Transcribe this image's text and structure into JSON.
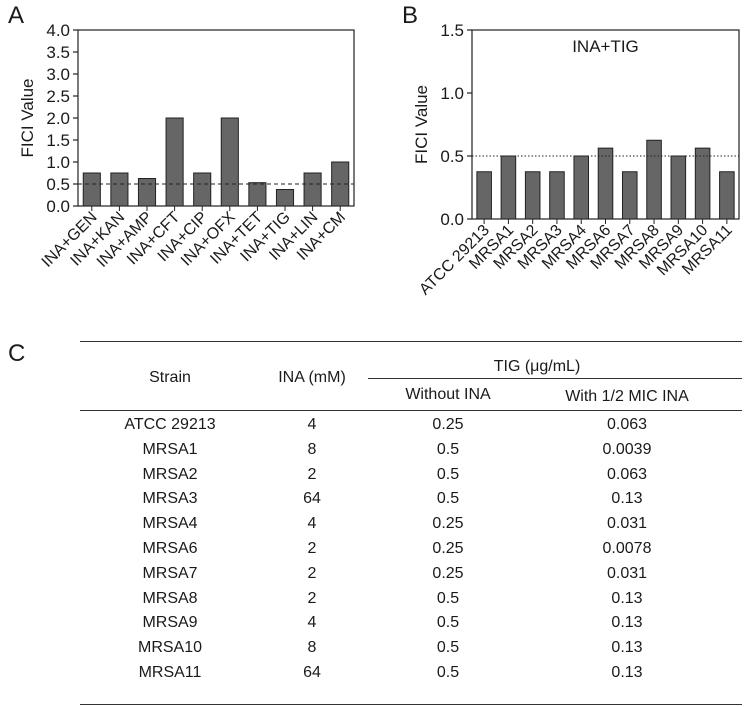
{
  "panels": {
    "a": "A",
    "b": "B",
    "c": "C"
  },
  "chart_data": [
    {
      "type": "bar",
      "panel": "A",
      "title": "",
      "xlabel": "",
      "ylabel": "FICI Value",
      "ylim": [
        0,
        4.0
      ],
      "yticks": [
        "0.0",
        "0.5",
        "1.0",
        "1.5",
        "2.0",
        "2.5",
        "3.0",
        "3.5",
        "4.0"
      ],
      "reference_line": 0.5,
      "categories": [
        "INA+GEN",
        "INA+KAN",
        "INA+AMP",
        "INA+CFT",
        "INA+CIP",
        "INA+OFX",
        "INA+TET",
        "INA+TIG",
        "INA+LIN",
        "INA+CM"
      ],
      "values": [
        0.75,
        0.75,
        0.625,
        2.0,
        0.75,
        2.0,
        0.53,
        0.375,
        0.75,
        1.0
      ]
    },
    {
      "type": "bar",
      "panel": "B",
      "title": "INA+TIG",
      "xlabel": "",
      "ylabel": "FICI Value",
      "ylim": [
        0,
        1.5
      ],
      "yticks": [
        "0.0",
        "0.5",
        "1.0",
        "1.5"
      ],
      "reference_line": 0.5,
      "categories": [
        "ATCC 29213",
        "MRSA1",
        "MRSA2",
        "MRSA3",
        "MRSA4",
        "MRSA6",
        "MRSA7",
        "MRSA8",
        "MRSA9",
        "MRSA10",
        "MRSA11"
      ],
      "values": [
        0.375,
        0.5,
        0.375,
        0.375,
        0.5,
        0.5625,
        0.375,
        0.625,
        0.5,
        0.5625,
        0.375
      ]
    }
  ],
  "table": {
    "headers": {
      "strain": "Strain",
      "ina": "INA (mM)",
      "tig": "TIG (μg/mL)",
      "without": "Without INA",
      "with": "With 1/2 MIC INA"
    },
    "rows": [
      [
        "ATCC 29213",
        "4",
        "0.25",
        "0.063"
      ],
      [
        "MRSA1",
        "8",
        "0.5",
        "0.0039"
      ],
      [
        "MRSA2",
        "2",
        "0.5",
        "0.063"
      ],
      [
        "MRSA3",
        "64",
        "0.5",
        "0.13"
      ],
      [
        "MRSA4",
        "4",
        "0.25",
        "0.031"
      ],
      [
        "MRSA6",
        "2",
        "0.25",
        "0.0078"
      ],
      [
        "MRSA7",
        "2",
        "0.25",
        "0.031"
      ],
      [
        "MRSA8",
        "2",
        "0.5",
        "0.13"
      ],
      [
        "MRSA9",
        "4",
        "0.5",
        "0.13"
      ],
      [
        "MRSA10",
        "8",
        "0.5",
        "0.13"
      ],
      [
        "MRSA11",
        "64",
        "0.5",
        "0.13"
      ]
    ]
  }
}
